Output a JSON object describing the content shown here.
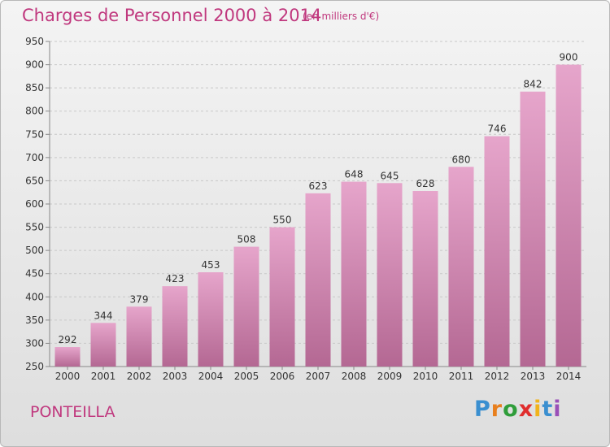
{
  "header": {
    "title": "Charges de Personnel 2000 à 2014",
    "unit": "(en milliers d'€)"
  },
  "footer": {
    "location": "PONTEILLA",
    "logo_letters": [
      "P",
      "r",
      "o",
      "x",
      "i",
      "t",
      "i"
    ]
  },
  "colors": {
    "accent": "#c0387e",
    "bar_top": "#e6a5cb",
    "bar_bottom": "#b46893"
  },
  "chart_data": {
    "type": "bar",
    "title": "Charges de Personnel 2000 à 2014",
    "subtitle": "(en milliers d'€)",
    "categories": [
      "2000",
      "2001",
      "2002",
      "2003",
      "2004",
      "2005",
      "2006",
      "2007",
      "2008",
      "2009",
      "2010",
      "2011",
      "2012",
      "2013",
      "2014"
    ],
    "values": [
      292,
      344,
      379,
      423,
      453,
      508,
      550,
      623,
      648,
      645,
      628,
      680,
      746,
      842,
      900
    ],
    "ylim": [
      250,
      950
    ],
    "yticks": [
      250,
      300,
      350,
      400,
      450,
      500,
      550,
      600,
      650,
      700,
      750,
      800,
      850,
      900,
      950
    ],
    "grid": "horizontal dashed",
    "legend": "none",
    "data_labels": true
  }
}
